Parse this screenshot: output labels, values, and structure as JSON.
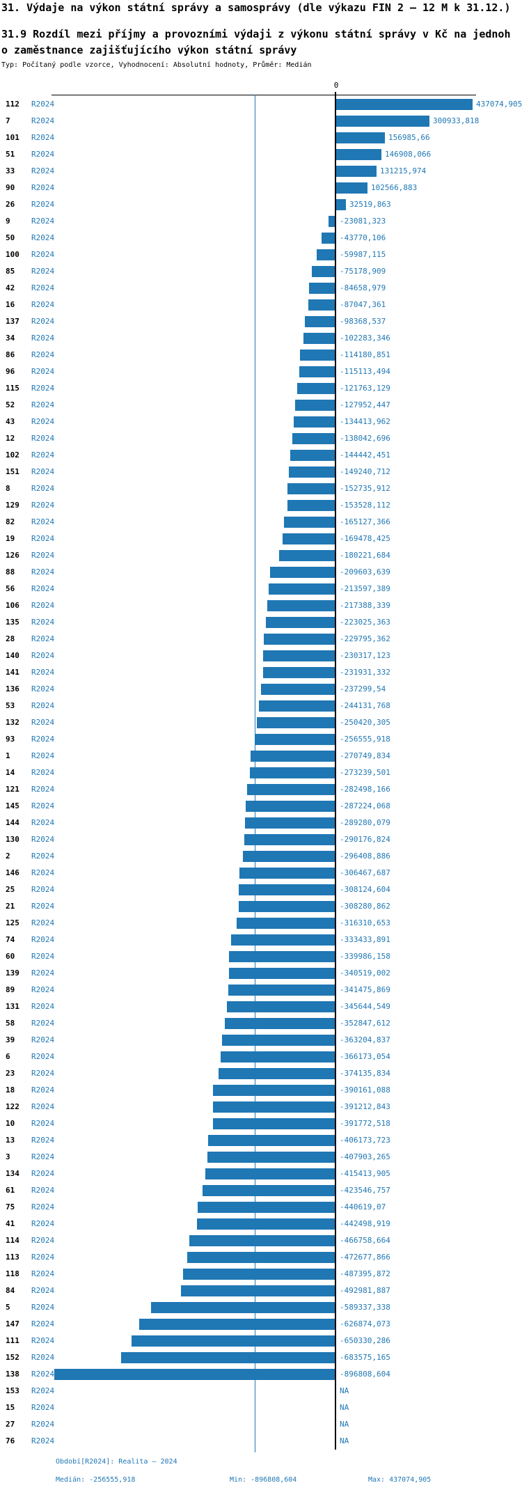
{
  "header": {
    "title": "31. Výdaje na výkon státní správy a samosprávy (dle výkazu FIN 2 – 12 M k 31.12.)",
    "subtitle_line1": "31.9 Rozdíl mezi příjmy a provozními výdaji z výkonu státní správy v Kč na jednoh",
    "subtitle_line2": "o zaměstnance zajišťujícího výkon státní správy",
    "meta": "Typ: Počítaný podle vzorce, Vyhodnocení: Absolutní hodnoty, Průměr: Medián"
  },
  "chart_data": {
    "type": "bar",
    "orientation": "horizontal",
    "series_label": "R2024",
    "zero_tick_label": "0",
    "bar_color": "#1f77b4",
    "median_line_color": "#1f77b4",
    "axis_color": "#000000",
    "xlim": [
      -910000,
      450000
    ],
    "median_value": -256555.918,
    "categories": [
      "112",
      "7",
      "101",
      "51",
      "33",
      "90",
      "26",
      "9",
      "50",
      "100",
      "85",
      "42",
      "16",
      "137",
      "34",
      "86",
      "96",
      "115",
      "52",
      "43",
      "12",
      "102",
      "151",
      "8",
      "129",
      "82",
      "19",
      "126",
      "88",
      "56",
      "106",
      "135",
      "28",
      "140",
      "141",
      "136",
      "53",
      "132",
      "93",
      "1",
      "14",
      "121",
      "145",
      "144",
      "130",
      "2",
      "146",
      "25",
      "21",
      "125",
      "74",
      "60",
      "139",
      "89",
      "131",
      "58",
      "39",
      "6",
      "23",
      "18",
      "122",
      "10",
      "13",
      "3",
      "134",
      "61",
      "75",
      "41",
      "114",
      "113",
      "118",
      "84",
      "5",
      "147",
      "111",
      "152",
      "138",
      "153",
      "15",
      "27",
      "76"
    ],
    "values": [
      437074.905,
      300933.818,
      156985.66,
      146908.066,
      131215.974,
      102566.883,
      32519.863,
      -23081.323,
      -43770.106,
      -59987.115,
      -75178.909,
      -84658.979,
      -87047.361,
      -98368.537,
      -102283.346,
      -114180.851,
      -115113.494,
      -121763.129,
      -127952.447,
      -134413.962,
      -138042.696,
      -144442.451,
      -149240.712,
      -152735.912,
      -153528.112,
      -165127.366,
      -169478.425,
      -180221.684,
      -209603.639,
      -213597.389,
      -217388.339,
      -223025.363,
      -229795.362,
      -230317.123,
      -231931.332,
      -237299.54,
      -244131.768,
      -250420.305,
      -256555.918,
      -270749.834,
      -273239.501,
      -282498.166,
      -287224.068,
      -289280.079,
      -290176.824,
      -296408.886,
      -306467.687,
      -308124.604,
      -308280.862,
      -316310.653,
      -333433.891,
      -339986.158,
      -340519.002,
      -341475.869,
      -345644.549,
      -352847.612,
      -363204.837,
      -366173.054,
      -374135.834,
      -390161.088,
      -391212.843,
      -391772.518,
      -406173.723,
      -407903.265,
      -415413.905,
      -423546.757,
      -440619.07,
      -442498.919,
      -466758.664,
      -472677.866,
      -487395.872,
      -492981.887,
      -589337.338,
      -626874.073,
      -650330.286,
      -683575.165,
      -896808.604,
      null,
      null,
      null,
      null
    ],
    "value_labels": [
      "437074,905",
      "300933,818",
      "156985,66",
      "146908,066",
      "131215,974",
      "102566,883",
      "32519,863",
      "-23081,323",
      "-43770,106",
      "-59987,115",
      "-75178,909",
      "-84658,979",
      "-87047,361",
      "-98368,537",
      "-102283,346",
      "-114180,851",
      "-115113,494",
      "-121763,129",
      "-127952,447",
      "-134413,962",
      "-138042,696",
      "-144442,451",
      "-149240,712",
      "-152735,912",
      "-153528,112",
      "-165127,366",
      "-169478,425",
      "-180221,684",
      "-209603,639",
      "-213597,389",
      "-217388,339",
      "-223025,363",
      "-229795,362",
      "-230317,123",
      "-231931,332",
      "-237299,54",
      "-244131,768",
      "-250420,305",
      "-256555,918",
      "-270749,834",
      "-273239,501",
      "-282498,166",
      "-287224,068",
      "-289280,079",
      "-290176,824",
      "-296408,886",
      "-306467,687",
      "-308124,604",
      "-308280,862",
      "-316310,653",
      "-333433,891",
      "-339986,158",
      "-340519,002",
      "-341475,869",
      "-345644,549",
      "-352847,612",
      "-363204,837",
      "-366173,054",
      "-374135,834",
      "-390161,088",
      "-391212,843",
      "-391772,518",
      "-406173,723",
      "-407903,265",
      "-415413,905",
      "-423546,757",
      "-440619,07",
      "-442498,919",
      "-466758,664",
      "-472677,866",
      "-487395,872",
      "-492981,887",
      "-589337,338",
      "-626874,073",
      "-650330,286",
      "-683575,165",
      "-896808,604",
      "NA",
      "NA",
      "NA",
      "NA"
    ]
  },
  "footer": {
    "period": "Období[R2024]: Realita – 2024",
    "median": "Medián: -256555,918",
    "min": "Min: -896808,604",
    "max": "Max: 437074,905"
  }
}
